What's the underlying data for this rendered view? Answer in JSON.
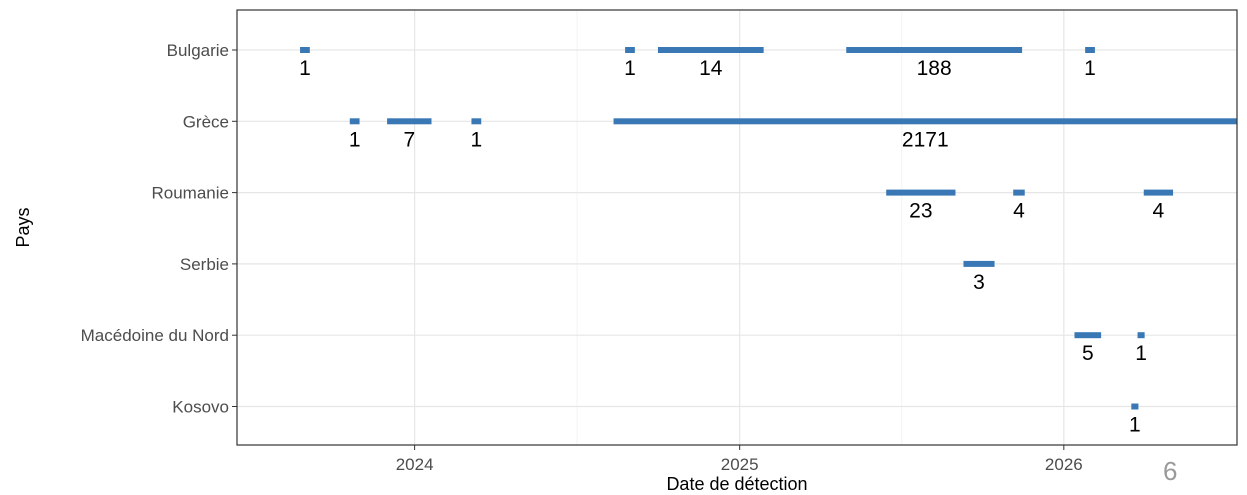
{
  "page_number": "6",
  "chart_data": {
    "type": "timeline",
    "xlabel": "Date de détection",
    "ylabel": "Pays",
    "x_tick_labels": [
      "2024",
      "2025",
      "2026"
    ],
    "x_ticks": [
      "2024-01-01",
      "2025-01-01",
      "2026-01-01"
    ],
    "xlim": [
      "2023-06-15",
      "2026-07-15"
    ],
    "grid": true,
    "bar_color": "#3a78b5",
    "series": [
      {
        "country": "Bulgarie",
        "segments": [
          {
            "start": "2023-08-25",
            "end": "2023-09-05",
            "count": 1
          },
          {
            "start": "2024-08-25",
            "end": "2024-09-05",
            "count": 1
          },
          {
            "start": "2024-10-01",
            "end": "2025-01-28",
            "count": 14
          },
          {
            "start": "2025-05-01",
            "end": "2025-11-15",
            "count": 188
          },
          {
            "start": "2026-01-25",
            "end": "2026-02-05",
            "count": 1
          }
        ]
      },
      {
        "country": "Grèce",
        "segments": [
          {
            "start": "2023-10-20",
            "end": "2023-10-31",
            "count": 1
          },
          {
            "start": "2023-12-01",
            "end": "2024-01-20",
            "count": 7
          },
          {
            "start": "2024-03-05",
            "end": "2024-03-16",
            "count": 1
          },
          {
            "start": "2024-08-12",
            "end": "2026-07-15",
            "count": 2171
          }
        ]
      },
      {
        "country": "Roumanie",
        "segments": [
          {
            "start": "2025-06-15",
            "end": "2025-09-01",
            "count": 23
          },
          {
            "start": "2025-11-05",
            "end": "2025-11-18",
            "count": 4
          },
          {
            "start": "2026-04-01",
            "end": "2026-05-04",
            "count": 4
          }
        ]
      },
      {
        "country": "Serbie",
        "segments": [
          {
            "start": "2025-09-10",
            "end": "2025-10-15",
            "count": 3
          }
        ]
      },
      {
        "country": "Macédoine du Nord",
        "segments": [
          {
            "start": "2026-01-13",
            "end": "2026-02-12",
            "count": 5
          },
          {
            "start": "2026-03-25",
            "end": "2026-04-02",
            "count": 1
          }
        ]
      },
      {
        "country": "Kosovo",
        "segments": [
          {
            "start": "2026-03-18",
            "end": "2026-03-26",
            "count": 1
          }
        ]
      }
    ]
  }
}
